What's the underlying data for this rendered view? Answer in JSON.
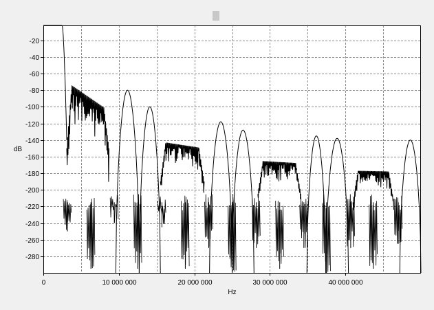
{
  "window": {
    "background": "#f0f0f0",
    "title_marker_color": "#c8c8c8"
  },
  "chart_data": {
    "type": "line",
    "title": "",
    "xlabel": "Hz",
    "ylabel": "dB",
    "xlim": [
      0,
      50000000
    ],
    "ylim": [
      -300,
      -2
    ],
    "grid": true,
    "grid_style": "dashed",
    "plot_background": "#ffffff",
    "line_color": "#000000",
    "x_ticks": [
      {
        "value": 0,
        "label": "0"
      },
      {
        "value": 10000000,
        "label": "10 000 000"
      },
      {
        "value": 20000000,
        "label": "20 000 000"
      },
      {
        "value": 30000000,
        "label": "30 000 000"
      },
      {
        "value": 40000000,
        "label": "40 000 000"
      }
    ],
    "x_minor_gridlines": [
      5000000,
      15000000,
      25000000,
      35000000,
      45000000
    ],
    "y_ticks": [
      {
        "value": -20,
        "label": "-20"
      },
      {
        "value": -40,
        "label": "-40"
      },
      {
        "value": -60,
        "label": "-60"
      },
      {
        "value": -80,
        "label": "-80"
      },
      {
        "value": -100,
        "label": "-100"
      },
      {
        "value": -120,
        "label": "-120"
      },
      {
        "value": -140,
        "label": "-140"
      },
      {
        "value": -160,
        "label": "-160"
      },
      {
        "value": -180,
        "label": "-180"
      },
      {
        "value": -200,
        "label": "-200"
      },
      {
        "value": -220,
        "label": "-220"
      },
      {
        "value": -240,
        "label": "-240"
      },
      {
        "value": -260,
        "label": "-260"
      },
      {
        "value": -280,
        "label": "-280"
      }
    ],
    "series": [
      {
        "lobes": [
          {
            "start": 0,
            "end": 2500000,
            "peak": -2,
            "shape": "flat"
          },
          {
            "start": 2500000,
            "end": 3100000,
            "peak": -2,
            "shape": "rolloff",
            "floor": -140
          },
          {
            "start": 3100000,
            "end": 8700000,
            "peak": -70,
            "shape": "noisy",
            "floor": -120,
            "tail": -105,
            "dip": -150
          },
          {
            "start": 9600000,
            "end": 12700000,
            "peak": -80,
            "shape": "arch"
          },
          {
            "start": 12700000,
            "end": 15500000,
            "peak": -100,
            "shape": "arch"
          },
          {
            "start": 15500000,
            "end": 21300000,
            "peak": -142,
            "shape": "noisy",
            "floor": -170,
            "tail": -150,
            "dip": -190
          },
          {
            "start": 22000000,
            "end": 25000000,
            "peak": -118,
            "shape": "arch"
          },
          {
            "start": 25000000,
            "end": 27900000,
            "peak": -128,
            "shape": "arch"
          },
          {
            "start": 28400000,
            "end": 34100000,
            "peak": -165,
            "shape": "noisy",
            "floor": -190,
            "tail": -168,
            "dip": -205
          },
          {
            "start": 34900000,
            "end": 37400000,
            "peak": -135,
            "shape": "arch"
          },
          {
            "start": 37400000,
            "end": 40400000,
            "peak": -138,
            "shape": "arch"
          },
          {
            "start": 41000000,
            "end": 46400000,
            "peak": -177,
            "shape": "noisy",
            "floor": -200,
            "tail": -178,
            "dip": -215
          },
          {
            "start": 47200000,
            "end": 50000000,
            "peak": -140,
            "shape": "arch"
          }
        ],
        "notches": [
          {
            "x": 3200000,
            "depth": -250
          },
          {
            "x": 6300000,
            "depth": -295
          },
          {
            "x": 9400000,
            "depth": -240
          },
          {
            "x": 12500000,
            "depth": -295
          },
          {
            "x": 15700000,
            "depth": -245
          },
          {
            "x": 18800000,
            "depth": -295
          },
          {
            "x": 21900000,
            "depth": -270
          },
          {
            "x": 25000000,
            "depth": -300
          },
          {
            "x": 28200000,
            "depth": -270
          },
          {
            "x": 31300000,
            "depth": -295
          },
          {
            "x": 34500000,
            "depth": -270
          },
          {
            "x": 37500000,
            "depth": -300
          },
          {
            "x": 40700000,
            "depth": -270
          },
          {
            "x": 43700000,
            "depth": -295
          },
          {
            "x": 47000000,
            "depth": -265
          }
        ]
      }
    ]
  }
}
